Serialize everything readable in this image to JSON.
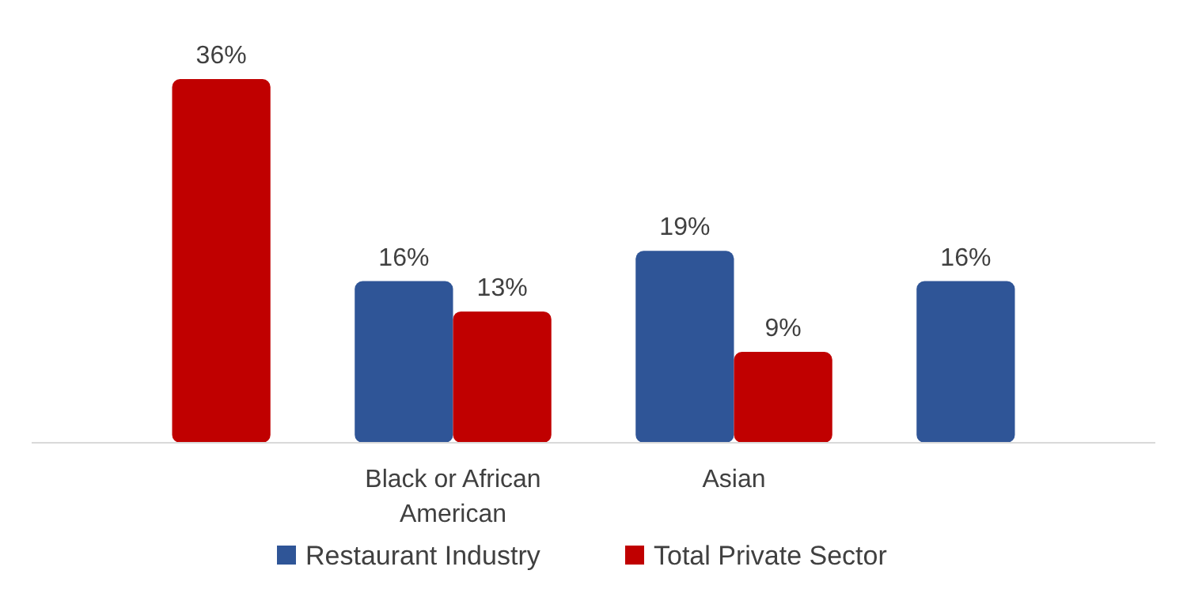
{
  "chart_data": {
    "type": "bar",
    "categories": [
      null,
      "Black or African American",
      "Asian",
      null
    ],
    "series": [
      {
        "name": "Restaurant Industry",
        "color": "#2f5597",
        "values": [
          null,
          16,
          19,
          16
        ],
        "value_labels": [
          null,
          "16%",
          "19%",
          "16%"
        ]
      },
      {
        "name": "Total Private Sector",
        "color": "#c00000",
        "values": [
          36,
          13,
          9,
          null
        ],
        "value_labels": [
          "36%",
          "13%",
          "9%",
          null
        ]
      }
    ],
    "legend": "bottom"
  }
}
